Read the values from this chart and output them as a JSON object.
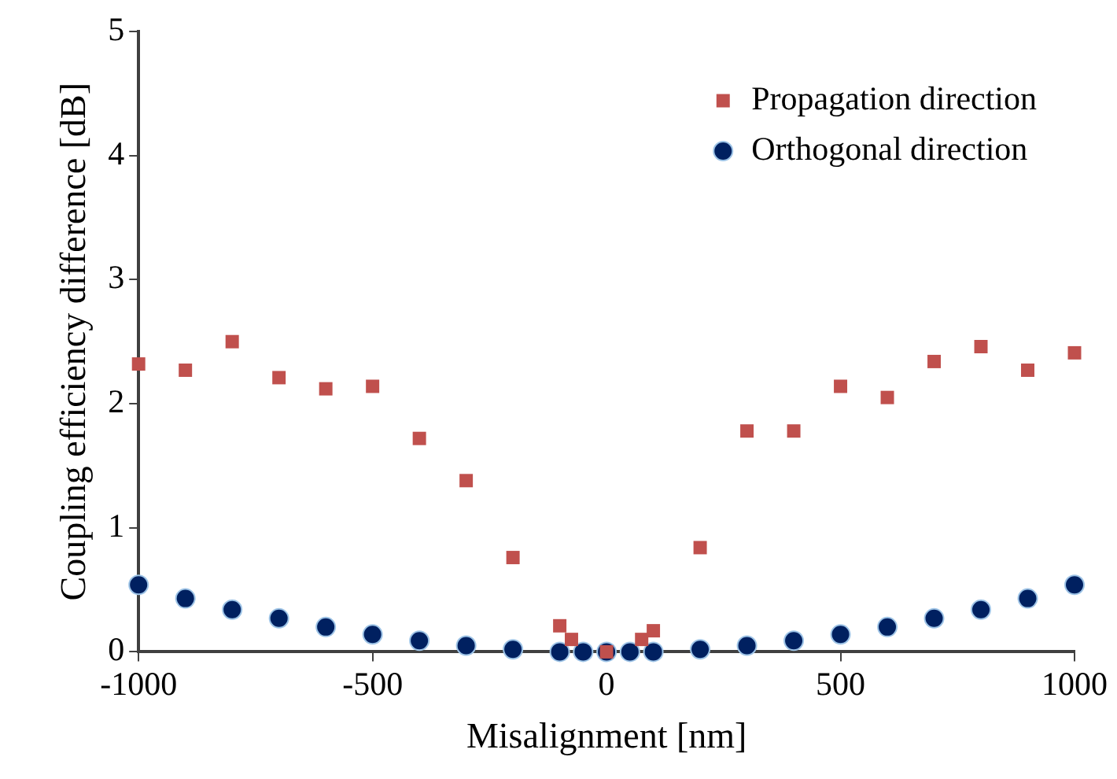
{
  "chart_data": {
    "type": "scatter",
    "xlabel": "Misalignment [nm]",
    "ylabel": "Coupling efficiency difference [dB]",
    "xlim": [
      -1000,
      1000
    ],
    "xticks": [
      -1000,
      -500,
      0,
      500,
      1000
    ],
    "ylim": [
      0,
      5
    ],
    "yticks": [
      0,
      1,
      2,
      3,
      4,
      5
    ],
    "grid": false,
    "legend": "top right",
    "series": [
      {
        "name": "Propagation direction",
        "color": "#c0504d",
        "marker": "square",
        "x": [
          -1000,
          -900,
          -800,
          -700,
          -600,
          -500,
          -400,
          -300,
          -200,
          -100,
          -75,
          0,
          75,
          100,
          200,
          300,
          400,
          500,
          600,
          700,
          800,
          900,
          1000
        ],
        "values": [
          2.32,
          2.27,
          2.5,
          2.21,
          2.12,
          2.14,
          1.72,
          1.38,
          0.76,
          0.21,
          0.1,
          0,
          0.1,
          0.17,
          0.84,
          1.78,
          1.78,
          2.14,
          2.05,
          2.34,
          2.46,
          2.27,
          2.41
        ]
      },
      {
        "name": "Orthogonal direction",
        "color": "#002060",
        "marker": "circle",
        "x": [
          -1000,
          -900,
          -800,
          -700,
          -600,
          -500,
          -400,
          -300,
          -200,
          -100,
          -50,
          0,
          50,
          100,
          200,
          300,
          400,
          500,
          600,
          700,
          800,
          900,
          1000
        ],
        "values": [
          0.54,
          0.43,
          0.34,
          0.27,
          0.2,
          0.14,
          0.09,
          0.05,
          0.02,
          0,
          0,
          0,
          0,
          0,
          0.02,
          0.05,
          0.09,
          0.14,
          0.2,
          0.27,
          0.34,
          0.43,
          0.54
        ]
      }
    ]
  }
}
